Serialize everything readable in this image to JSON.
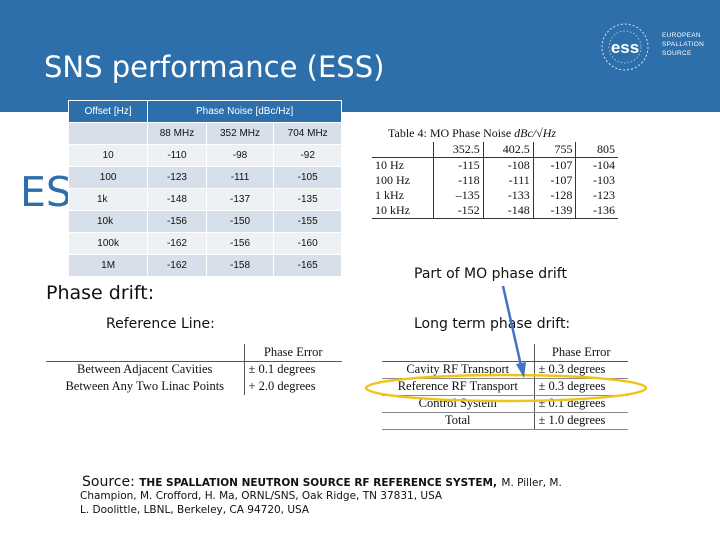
{
  "title": "SNS performance (ESS)",
  "logo": {
    "acronym": "ess",
    "lines": [
      "EUROPEAN",
      "SPALLATION",
      "SOURCE"
    ]
  },
  "ess_label": "ESS",
  "phase_noise_table": {
    "headers": [
      "Offset [Hz]",
      "Phase Noise [dBc/Hz]"
    ],
    "subheaders": [
      "",
      "88 MHz",
      "352 MHz",
      "704 MHz"
    ],
    "rows": [
      [
        "10",
        "-110",
        "-98",
        "-92"
      ],
      [
        "100",
        "-123",
        "-111",
        "-105"
      ],
      [
        "1k",
        "-148",
        "-137",
        "-135"
      ],
      [
        "10k",
        "-156",
        "-150",
        "-155"
      ],
      [
        "100k",
        "-162",
        "-156",
        "-160"
      ],
      [
        "1M",
        "-162",
        "-158",
        "-165"
      ]
    ]
  },
  "mo_table": {
    "caption": "Table 4: MO Phase Noise",
    "unit": "dBc/√Hz",
    "columns": [
      "",
      "352.5",
      "402.5",
      "755",
      "805"
    ],
    "rows": [
      [
        "10 Hz",
        "-115",
        "-108",
        "-107",
        "-104"
      ],
      [
        "100 Hz",
        "-118",
        "-111",
        "-107",
        "-103"
      ],
      [
        "1 kHz",
        "–135",
        "-133",
        "-128",
        "-123"
      ],
      [
        "10 kHz",
        "-152",
        "-148",
        "-139",
        "-136"
      ]
    ]
  },
  "notes": {
    "mo_part": "Part of MO phase drift",
    "phase_drift": "Phase drift:",
    "reference_line": "Reference Line:",
    "long_term": "Long term phase drift:"
  },
  "reference_line_table": {
    "header": "Phase Error",
    "rows": [
      [
        "Between Adjacent Cavities",
        "± 0.1 degrees"
      ],
      [
        "Between Any Two Linac Points",
        "+ 2.0 degrees"
      ]
    ]
  },
  "long_term_table": {
    "header": "Phase Error",
    "rows": [
      [
        "Cavity RF Transport",
        "± 0.3 degrees"
      ],
      [
        "Reference RF Transport",
        "± 0.3 degrees"
      ],
      [
        "Control System",
        "± 0.1 degrees"
      ],
      [
        "Total",
        "± 1.0 degrees"
      ]
    ]
  },
  "source": {
    "label": "Source:",
    "title": "THE SPALLATION NEUTRON SOURCE RF REFERENCE SYSTEM,",
    "first_author": "M. Piller, M.",
    "line2": "Champion, M. Crofford, H. Ma, ORNL/SNS, Oak Ridge, TN 37831, USA",
    "line3": "L. Doolittle, LBNL, Berkeley, CA 94720, USA"
  },
  "colors": {
    "header_blue": "#2c6faa",
    "highlight_ellipse": "#f0c419",
    "arrow": "#4472c4"
  }
}
